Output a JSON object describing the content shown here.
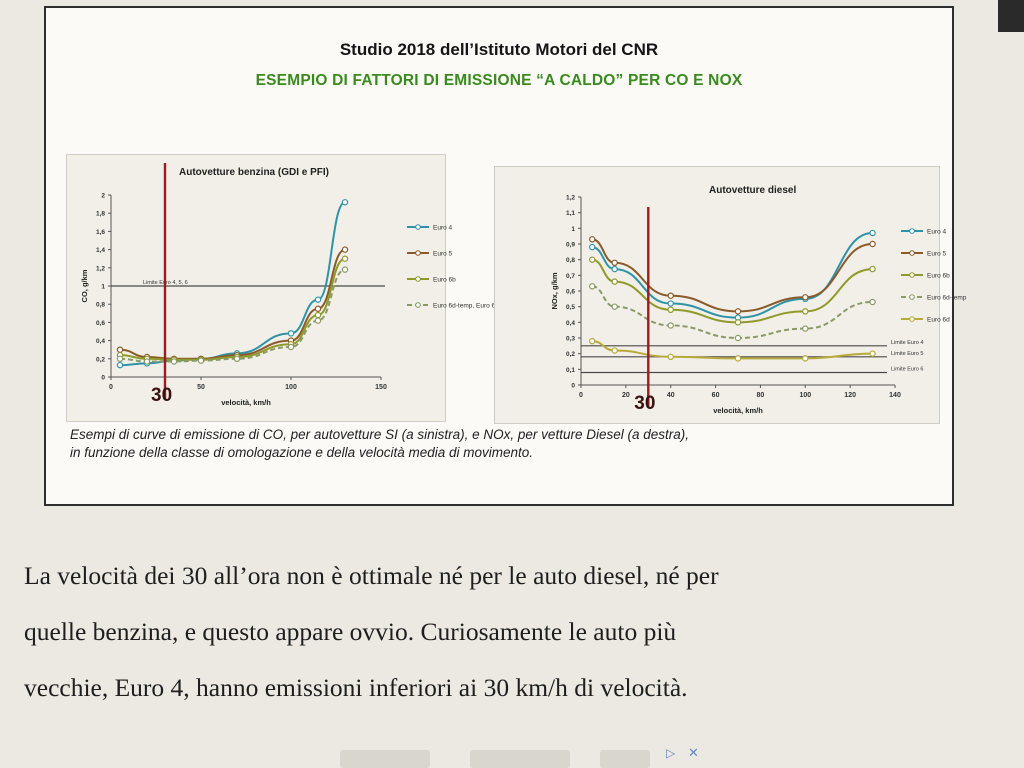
{
  "slide": {
    "title": "Studio 2018 dell’Istituto Motori  del CNR",
    "subtitle": "ESEMPIO DI FATTORI DI EMISSIONE “A CALDO” PER CO E NOX",
    "caption_lines": [
      "Esempi di curve di emissione di CO, per  autovetture SI (a sinistra), e NOx,  per vetture Diesel (a destra),",
      "in funzione della classe di omologazione e della velocità media di movimento."
    ]
  },
  "article": {
    "lines": [
      "La velocità dei 30 all’ora non è ottimale né per le auto diesel, né per",
      "quelle benzina, e questo appare ovvio. Curiosamente le auto più",
      "vecchie, Euro 4, hanno emissioni inferiori ai 30 km/h di velocità."
    ]
  },
  "colors": {
    "euro4": "#2f93a8",
    "euro5": "#8a5a2b",
    "euro6b": "#8f9a2a",
    "euro6d": "#b8aa38",
    "euro6dtemp": "#8a9a68",
    "marker": "#9b1c22",
    "limit": "#4a4a4a",
    "accent_green": "#3a8a1e"
  },
  "chart_data": [
    {
      "type": "line",
      "title": "Autovetture benzina (GDI e PFI)",
      "xlabel": "velocità, km/h",
      "ylabel": "CO, g/km",
      "xlim": [
        0,
        150
      ],
      "ylim": [
        0,
        2
      ],
      "xticks": [
        "0",
        "50",
        "100",
        "150"
      ],
      "yticks": [
        "0",
        "0,2",
        "0,4",
        "0,6",
        "0,8",
        "1",
        "1,2",
        "1,4",
        "1,6",
        "1,8",
        "2"
      ],
      "legend": [
        "Euro 4",
        "Euro 5",
        "Euro 6b",
        "Euro 6d-temp, Euro 6d"
      ],
      "legend_position": "right",
      "grid": false,
      "limit_line": {
        "label": "Limite Euro 4, 5, 6",
        "value": 1
      },
      "marker_line": {
        "value": 30,
        "label": "30"
      },
      "series": [
        {
          "name": "Euro 4",
          "x": [
            5,
            20,
            35,
            50,
            70,
            100,
            115,
            130
          ],
          "y": [
            0.13,
            0.15,
            0.18,
            0.2,
            0.26,
            0.48,
            0.85,
            1.92
          ]
        },
        {
          "name": "Euro 5",
          "x": [
            5,
            20,
            35,
            50,
            70,
            100,
            115,
            130
          ],
          "y": [
            0.3,
            0.22,
            0.2,
            0.2,
            0.24,
            0.4,
            0.75,
            1.4
          ]
        },
        {
          "name": "Euro 6b",
          "x": [
            5,
            20,
            35,
            50,
            70,
            100,
            115,
            130
          ],
          "y": [
            0.24,
            0.2,
            0.19,
            0.19,
            0.22,
            0.36,
            0.68,
            1.3
          ]
        },
        {
          "name": "Euro 6d-temp, Euro 6d",
          "x": [
            5,
            20,
            35,
            50,
            70,
            100,
            115,
            130
          ],
          "y": [
            0.2,
            0.17,
            0.17,
            0.18,
            0.2,
            0.33,
            0.62,
            1.18
          ]
        }
      ]
    },
    {
      "type": "line",
      "title": "Autovetture diesel",
      "xlabel": "velocità, km/h",
      "ylabel": "NOx, g/km",
      "xlim": [
        0,
        140
      ],
      "ylim": [
        0,
        1.2
      ],
      "xticks": [
        "0",
        "20",
        "40",
        "60",
        "80",
        "100",
        "120",
        "140"
      ],
      "yticks": [
        "0",
        "0,1",
        "0,2",
        "0,3",
        "0,4",
        "0,5",
        "0,6",
        "0,7",
        "0,8",
        "0,9",
        "1",
        "1,1",
        "1,2"
      ],
      "legend": [
        "Euro 4",
        "Euro 5",
        "Euro 6b",
        "Euro 6d-temp",
        "Euro 6d"
      ],
      "legend_position": "right",
      "grid": false,
      "limit_lines": [
        {
          "label": "Limite Euro 4",
          "value": 0.25
        },
        {
          "label": "Limite Euro 5",
          "value": 0.18
        },
        {
          "label": "Limite Euro 6",
          "value": 0.08
        }
      ],
      "marker_line": {
        "value": 30,
        "label": "30"
      },
      "series": [
        {
          "name": "Euro 4",
          "x": [
            5,
            15,
            40,
            70,
            100,
            130
          ],
          "y": [
            0.88,
            0.74,
            0.52,
            0.43,
            0.55,
            0.97
          ]
        },
        {
          "name": "Euro 5",
          "x": [
            5,
            15,
            40,
            70,
            100,
            130
          ],
          "y": [
            0.93,
            0.78,
            0.57,
            0.47,
            0.56,
            0.9
          ]
        },
        {
          "name": "Euro 6b",
          "x": [
            5,
            15,
            40,
            70,
            100,
            130
          ],
          "y": [
            0.8,
            0.66,
            0.48,
            0.4,
            0.47,
            0.74
          ]
        },
        {
          "name": "Euro 6d-temp",
          "x": [
            5,
            15,
            40,
            70,
            100,
            130
          ],
          "y": [
            0.63,
            0.5,
            0.38,
            0.3,
            0.36,
            0.53
          ]
        },
        {
          "name": "Euro 6d",
          "x": [
            5,
            15,
            40,
            70,
            100,
            130
          ],
          "y": [
            0.28,
            0.22,
            0.18,
            0.17,
            0.17,
            0.2
          ]
        }
      ]
    }
  ]
}
